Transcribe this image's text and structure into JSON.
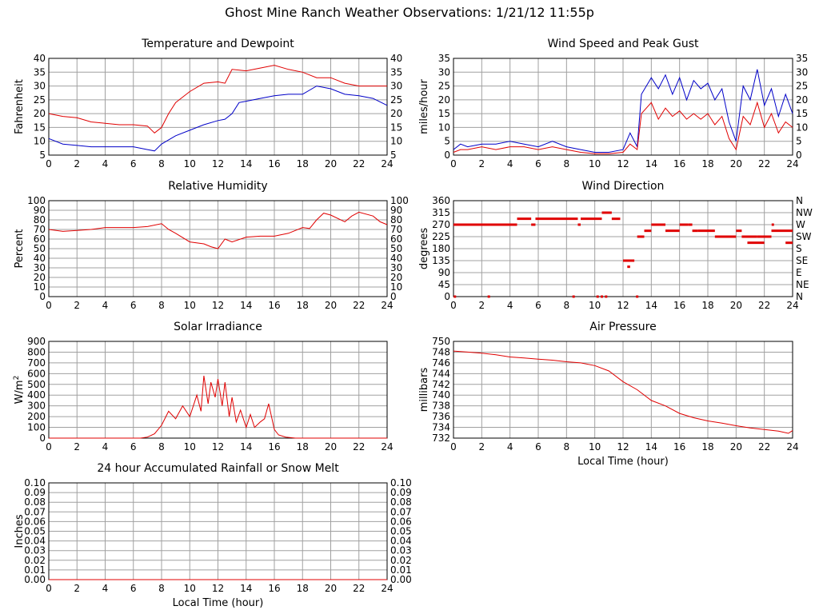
{
  "title": "Ghost Mine Ranch Weather Observations: 1/21/12 11:55p",
  "colors": {
    "red": "#e00000",
    "blue": "#0000c8",
    "grid": "#a0a0a0"
  },
  "chart_data": [
    {
      "id": "temp",
      "type": "line",
      "title": "Temperature and Dewpoint",
      "xlabel": "",
      "ylabel": "Fahrenheit",
      "xlim": [
        0,
        24
      ],
      "ylim": [
        5,
        40
      ],
      "x_ticks": [
        "0",
        "2",
        "4",
        "6",
        "8",
        "10",
        "12",
        "14",
        "16",
        "18",
        "20",
        "22",
        "24"
      ],
      "y_ticks": [
        "5",
        "10",
        "15",
        "20",
        "25",
        "30",
        "35",
        "40"
      ],
      "right_ticks": [
        "5",
        "10",
        "15",
        "20",
        "25",
        "30",
        "35",
        "40"
      ],
      "grid": true,
      "series": [
        {
          "color": "red",
          "x": [
            0,
            1,
            2,
            3,
            4,
            5,
            6,
            7,
            7.5,
            8,
            8.5,
            9,
            10,
            11,
            12,
            12.5,
            13,
            14,
            15,
            16,
            17,
            18,
            19,
            20,
            21,
            22,
            23,
            24
          ],
          "y": [
            20,
            19,
            18.5,
            17,
            16.5,
            16,
            16,
            15.5,
            13,
            15,
            20,
            24,
            28,
            31,
            31.5,
            31,
            36,
            35.5,
            36.5,
            37.5,
            36,
            35,
            33,
            33,
            31,
            30,
            30,
            30
          ]
        },
        {
          "color": "blue",
          "x": [
            0,
            1,
            2,
            3,
            4,
            5,
            6,
            7,
            7.5,
            8,
            9,
            10,
            11,
            12,
            12.5,
            13,
            13.5,
            14,
            15,
            16,
            17,
            18,
            19,
            20,
            21,
            22,
            23,
            24
          ],
          "y": [
            11,
            9,
            8.5,
            8,
            8,
            8,
            8,
            7,
            6.5,
            9,
            12,
            14,
            16,
            17.5,
            18,
            20,
            24,
            24.5,
            25.5,
            26.5,
            27,
            27,
            30,
            29,
            27,
            26.5,
            25.5,
            23
          ]
        }
      ]
    },
    {
      "id": "wind",
      "type": "line",
      "title": "Wind Speed and Peak Gust",
      "xlabel": "",
      "ylabel": "miles/hour",
      "xlim": [
        0,
        24
      ],
      "ylim": [
        0,
        35
      ],
      "x_ticks": [
        "0",
        "2",
        "4",
        "6",
        "8",
        "10",
        "12",
        "14",
        "16",
        "18",
        "20",
        "22",
        "24"
      ],
      "y_ticks": [
        "0",
        "5",
        "10",
        "15",
        "20",
        "25",
        "30",
        "35"
      ],
      "right_ticks": [
        "0",
        "5",
        "10",
        "15",
        "20",
        "25",
        "30",
        "35"
      ],
      "grid": true,
      "series": [
        {
          "color": "blue",
          "x": [
            0,
            0.5,
            1,
            2,
            3,
            4,
            5,
            6,
            7,
            8,
            9,
            10,
            11,
            12,
            12.5,
            13,
            13.3,
            14,
            14.5,
            15,
            15.5,
            16,
            16.5,
            17,
            17.5,
            18,
            18.5,
            19,
            19.5,
            20,
            20.5,
            21,
            21.5,
            22,
            22.5,
            23,
            23.5,
            24
          ],
          "y": [
            2,
            4,
            3,
            4,
            4,
            5,
            4,
            3,
            5,
            3,
            2,
            1,
            1,
            2,
            8,
            3,
            22,
            28,
            24,
            29,
            22,
            28,
            20,
            27,
            24,
            26,
            20,
            24,
            12,
            5,
            25,
            20,
            31,
            18,
            24,
            14,
            22,
            15
          ]
        },
        {
          "color": "red",
          "x": [
            0,
            0.5,
            1,
            2,
            3,
            4,
            5,
            6,
            7,
            8,
            9,
            10,
            11,
            12,
            12.5,
            13,
            13.3,
            14,
            14.5,
            15,
            15.5,
            16,
            16.5,
            17,
            17.5,
            18,
            18.5,
            19,
            19.5,
            20,
            20.5,
            21,
            21.5,
            22,
            22.5,
            23,
            23.5,
            24
          ],
          "y": [
            1,
            2,
            2,
            3,
            2,
            3,
            3,
            2,
            3,
            2,
            1,
            0.5,
            0.5,
            1,
            4,
            2,
            15,
            19,
            13,
            17,
            14,
            16,
            13,
            15,
            13,
            15,
            11,
            14,
            6,
            2,
            14,
            11,
            19,
            10,
            15,
            8,
            12,
            10
          ]
        }
      ]
    },
    {
      "id": "humidity",
      "type": "line",
      "title": "Relative Humidity",
      "xlabel": "",
      "ylabel": "Percent",
      "xlim": [
        0,
        24
      ],
      "ylim": [
        0,
        100
      ],
      "x_ticks": [
        "0",
        "2",
        "4",
        "6",
        "8",
        "10",
        "12",
        "14",
        "16",
        "18",
        "20",
        "22",
        "24"
      ],
      "y_ticks": [
        "0",
        "10",
        "20",
        "30",
        "40",
        "50",
        "60",
        "70",
        "80",
        "90",
        "100"
      ],
      "right_ticks": [
        "0",
        "10",
        "20",
        "30",
        "40",
        "50",
        "60",
        "70",
        "80",
        "90",
        "100"
      ],
      "grid": true,
      "series": [
        {
          "color": "red",
          "x": [
            0,
            1,
            2,
            3,
            4,
            5,
            6,
            7,
            8,
            8.5,
            9,
            10,
            11,
            11.5,
            12,
            12.5,
            13,
            14,
            15,
            16,
            17,
            18,
            18.5,
            19,
            19.5,
            20,
            21,
            21.5,
            22,
            23,
            23.5,
            24
          ],
          "y": [
            70,
            68,
            69,
            70,
            72,
            72,
            72,
            73,
            76,
            70,
            66,
            57,
            55,
            52,
            50,
            60,
            57,
            62,
            63,
            63,
            66,
            72,
            71,
            80,
            87,
            85,
            78,
            84,
            88,
            84,
            78,
            75
          ]
        }
      ]
    },
    {
      "id": "winddir",
      "type": "scatter",
      "title": "Wind Direction",
      "xlabel": "",
      "ylabel": "degrees",
      "xlim": [
        0,
        24
      ],
      "ylim": [
        0,
        360
      ],
      "x_ticks": [
        "0",
        "2",
        "4",
        "6",
        "8",
        "10",
        "12",
        "14",
        "16",
        "18",
        "20",
        "22",
        "24"
      ],
      "y_ticks": [
        "0",
        "45",
        "90",
        "135",
        "180",
        "225",
        "270",
        "315",
        "360"
      ],
      "right_ticks": [
        "N",
        "NE",
        "E",
        "SE",
        "S",
        "SW",
        "W",
        "NW",
        "N"
      ],
      "grid": true,
      "series": [
        {
          "color": "red",
          "segments": [
            [
              0,
              4.5,
              270
            ],
            [
              4.5,
              5.5,
              292
            ],
            [
              5.5,
              5.8,
              270
            ],
            [
              5.8,
              8.8,
              292
            ],
            [
              8.8,
              9,
              270
            ],
            [
              9,
              10.5,
              292
            ],
            [
              10.5,
              11.2,
              315
            ],
            [
              11.2,
              11.8,
              292
            ],
            [
              12,
              12.8,
              135
            ],
            [
              12.3,
              12.5,
              112
            ],
            [
              13,
              13.5,
              225
            ],
            [
              13.5,
              14,
              247
            ],
            [
              14,
              15,
              270
            ],
            [
              15,
              16,
              247
            ],
            [
              16,
              16.6,
              270
            ],
            [
              16.6,
              16.9,
              270
            ],
            [
              16.9,
              17.3,
              247
            ],
            [
              17.3,
              18.5,
              247
            ],
            [
              18.5,
              20,
              225
            ],
            [
              20,
              20.4,
              247
            ],
            [
              20.4,
              21.5,
              225
            ],
            [
              20.8,
              22,
              202
            ],
            [
              21.5,
              22.5,
              225
            ],
            [
              22.5,
              24,
              247
            ],
            [
              23.5,
              24,
              202
            ]
          ],
          "points": [
            [
              0.1,
              0
            ],
            [
              2.5,
              0
            ],
            [
              8.5,
              0
            ],
            [
              10.2,
              0
            ],
            [
              10.5,
              0
            ],
            [
              10.8,
              0
            ],
            [
              13,
              0
            ],
            [
              22.6,
              270
            ]
          ]
        }
      ]
    },
    {
      "id": "solar",
      "type": "line",
      "title": "Solar Irradiance",
      "xlabel": "",
      "ylabel": "W/m",
      "ylabel_sup": "2",
      "xlim": [
        0,
        24
      ],
      "ylim": [
        0,
        900
      ],
      "x_ticks": [
        "0",
        "2",
        "4",
        "6",
        "8",
        "10",
        "12",
        "14",
        "16",
        "18",
        "20",
        "22",
        "24"
      ],
      "y_ticks": [
        "0",
        "100",
        "200",
        "300",
        "400",
        "500",
        "600",
        "700",
        "800",
        "900"
      ],
      "right_ticks": [],
      "grid": true,
      "series": [
        {
          "color": "red",
          "x": [
            0,
            6.5,
            7,
            7.5,
            8,
            8.5,
            9,
            9.5,
            10,
            10.5,
            10.8,
            11,
            11.3,
            11.5,
            11.8,
            12,
            12.3,
            12.5,
            12.8,
            13,
            13.3,
            13.6,
            14,
            14.3,
            14.6,
            15,
            15.3,
            15.6,
            16,
            16.3,
            16.8,
            17.5,
            24
          ],
          "y": [
            0,
            0,
            10,
            40,
            120,
            250,
            180,
            300,
            200,
            400,
            250,
            580,
            320,
            520,
            380,
            550,
            300,
            520,
            200,
            380,
            150,
            260,
            100,
            220,
            100,
            150,
            180,
            320,
            80,
            30,
            10,
            0,
            0
          ]
        }
      ]
    },
    {
      "id": "pressure",
      "type": "line",
      "title": "Air Pressure",
      "xlabel": "Local Time (hour)",
      "ylabel": "millibars",
      "xlim": [
        0,
        24
      ],
      "ylim": [
        732,
        750
      ],
      "x_ticks": [
        "0",
        "2",
        "4",
        "6",
        "8",
        "10",
        "12",
        "14",
        "16",
        "18",
        "20",
        "22",
        "24"
      ],
      "y_ticks": [
        "732",
        "734",
        "736",
        "738",
        "740",
        "742",
        "744",
        "746",
        "748",
        "750"
      ],
      "right_ticks": [],
      "grid": true,
      "series": [
        {
          "color": "red",
          "x": [
            0,
            1,
            2,
            3,
            4,
            5,
            6,
            7,
            8,
            9,
            10,
            11,
            12,
            13,
            14,
            15,
            16,
            17,
            18,
            19,
            20,
            21,
            22,
            23,
            23.7,
            24
          ],
          "y": [
            748.2,
            748,
            747.8,
            747.5,
            747.1,
            746.9,
            746.7,
            746.5,
            746.2,
            746,
            745.5,
            744.5,
            742.5,
            741,
            739,
            738,
            736.6,
            735.8,
            735.2,
            734.8,
            734.3,
            733.9,
            733.6,
            733.3,
            732.9,
            733.4
          ]
        }
      ]
    },
    {
      "id": "rain",
      "type": "line",
      "title": "24 hour Accumulated Rainfall or Snow Melt",
      "xlabel": "Local Time (hour)",
      "ylabel": "Inches",
      "xlim": [
        0,
        24
      ],
      "ylim": [
        0,
        0.1
      ],
      "x_ticks": [
        "0",
        "2",
        "4",
        "6",
        "8",
        "10",
        "12",
        "14",
        "16",
        "18",
        "20",
        "22",
        "24"
      ],
      "y_ticks": [
        "0.00",
        "0.01",
        "0.02",
        "0.03",
        "0.04",
        "0.05",
        "0.06",
        "0.07",
        "0.08",
        "0.09",
        "0.10"
      ],
      "right_ticks": [
        "0.00",
        "0.01",
        "0.02",
        "0.03",
        "0.04",
        "0.05",
        "0.06",
        "0.07",
        "0.08",
        "0.09",
        "0.10"
      ],
      "grid": true,
      "series": [
        {
          "color": "red",
          "x": [
            0,
            24
          ],
          "y": [
            0,
            0
          ]
        }
      ]
    }
  ]
}
